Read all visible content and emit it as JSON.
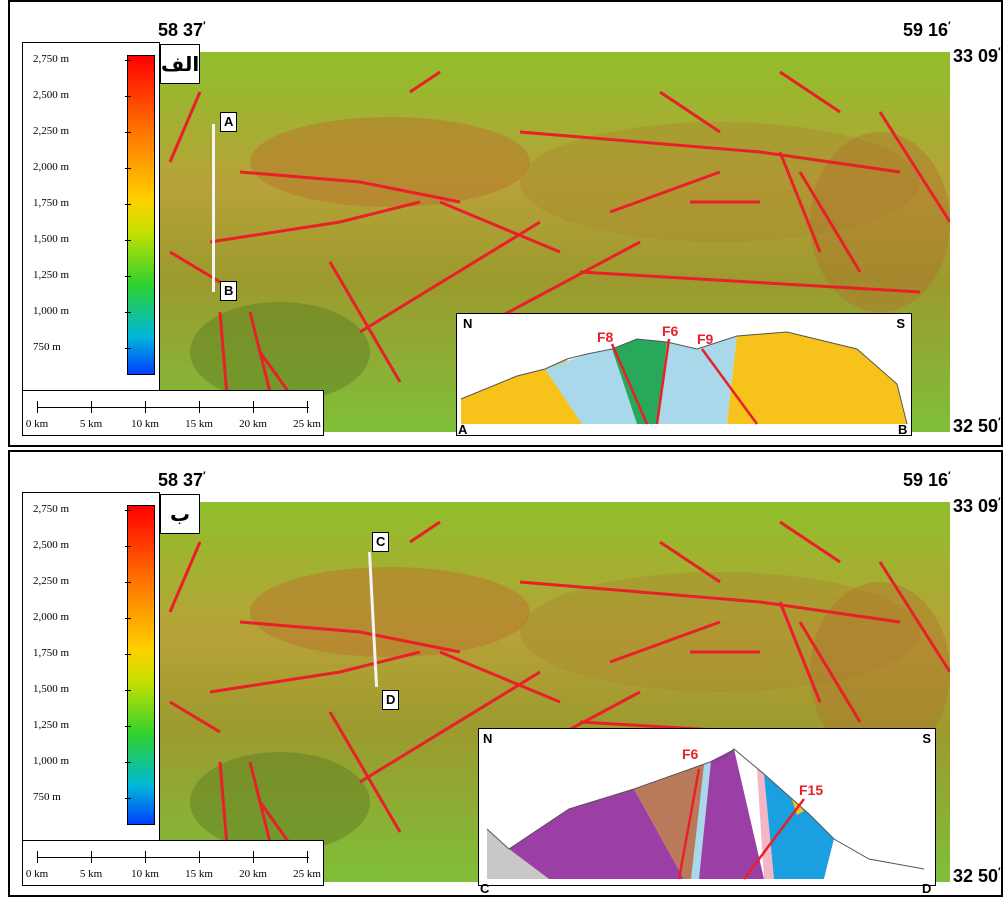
{
  "panels": [
    {
      "label": "الف",
      "coords": {
        "lon_left": "58 37",
        "lon_right": "59 16",
        "lat_top": "33 09",
        "lat_bottom": "32 50"
      },
      "profile_start": "A",
      "profile_end": "B",
      "section": {
        "north": "N",
        "south": "S",
        "left_end": "A",
        "right_end": "B",
        "faults": [
          "F8",
          "F6",
          "F9"
        ]
      }
    },
    {
      "label": "ب",
      "coords": {
        "lon_left": "58 37",
        "lon_right": "59 16",
        "lat_top": "33 09",
        "lat_bottom": "32 50"
      },
      "profile_start": "C",
      "profile_end": "D",
      "section": {
        "north": "N",
        "south": "S",
        "left_end": "C",
        "right_end": "D",
        "faults": [
          "F6",
          "F15"
        ]
      }
    }
  ],
  "legend": {
    "ticks": [
      "2,750 m",
      "2,500 m",
      "2,250 m",
      "2,000 m",
      "1,750 m",
      "1,500 m",
      "1,250 m",
      "1,000 m",
      "750 m"
    ]
  },
  "scale_bar": {
    "labels": [
      "0 km",
      "5 km",
      "10 km",
      "15 km",
      "20 km",
      "25 km"
    ]
  },
  "colors": {
    "fault": "#e8202a",
    "unit_yellow": "#f7c21a",
    "unit_lightblue": "#a8d8ea",
    "unit_green": "#27a85a",
    "unit_purple": "#9b3fa6",
    "unit_brown": "#b87a5a",
    "unit_blue": "#1a9fe0",
    "unit_gray": "#c8c8c8",
    "unit_pink": "#f4b6c6"
  }
}
